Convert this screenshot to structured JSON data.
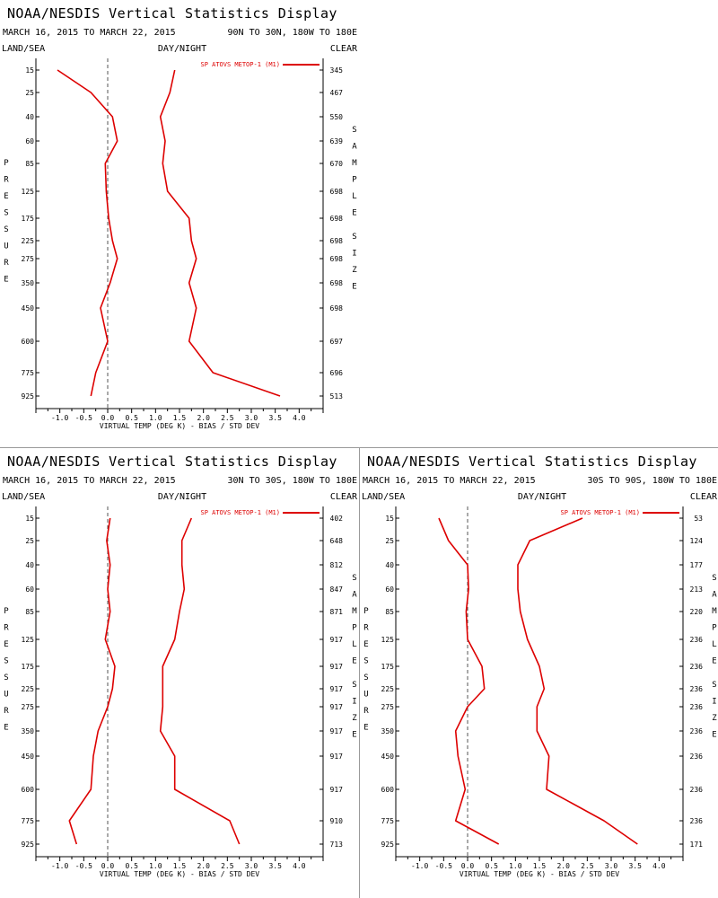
{
  "charts": [
    {
      "title": "NOAA/NESDIS Vertical Statistics Display",
      "date_range": "MARCH 16, 2015 TO MARCH 22, 2015",
      "region": "90N TO 30N, 180W TO 180E",
      "left_label": "LAND/SEA",
      "center_label": "DAY/NIGHT",
      "right_label": "CLEAR",
      "legend": "SP ATOVS METOP-1 (M1)",
      "ylabel": "PRESSURE",
      "y2label": "SAMPLE SIZE",
      "xlabel": "VIRTUAL TEMP (DEG K) - BIAS / STD DEV"
    },
    {
      "title": "NOAA/NESDIS Vertical Statistics Display",
      "date_range": "MARCH 16, 2015 TO MARCH 22, 2015",
      "region": "30N TO 30S, 180W TO 180E",
      "left_label": "LAND/SEA",
      "center_label": "DAY/NIGHT",
      "right_label": "CLEAR",
      "legend": "SP ATOVS METOP-1 (M1)",
      "ylabel": "PRESSURE",
      "y2label": "SAMPLE SIZE",
      "xlabel": "VIRTUAL TEMP (DEG K) - BIAS / STD DEV"
    },
    {
      "title": "NOAA/NESDIS Vertical Statistics Display",
      "date_range": "MARCH 16, 2015 TO MARCH 22, 2015",
      "region": "30S TO 90S, 180W TO 180E",
      "left_label": "LAND/SEA",
      "center_label": "DAY/NIGHT",
      "right_label": "CLEAR",
      "legend": "SP ATOVS METOP-1 (M1)",
      "ylabel": "PRESSURE",
      "y2label": "SAMPLE SIZE",
      "xlabel": "VIRTUAL TEMP (DEG K) - BIAS / STD DEV"
    }
  ],
  "chart_data": [
    {
      "type": "line",
      "pressure_levels": [
        "15",
        "25",
        "40",
        "60",
        "85",
        "125",
        "175",
        "225",
        "275",
        "350",
        "450",
        "600",
        "775",
        "925"
      ],
      "x_ticks": [
        "-1.0",
        "-0.5",
        "0.0",
        "0.5",
        "1.0",
        "1.5",
        "2.0",
        "2.5",
        "3.0",
        "3.5",
        "4.0"
      ],
      "xlim": [
        -1.5,
        4.5
      ],
      "reference_line_x": 0,
      "sample_size": [
        "345",
        "467",
        "550",
        "639",
        "670",
        "698",
        "698",
        "698",
        "698",
        "698",
        "698",
        "697",
        "696",
        "513"
      ],
      "series": [
        {
          "name": "SP ATOVS METOP-1 (M1)",
          "metric": "BIAS",
          "color": "#dd0000",
          "values": [
            -1.05,
            -0.35,
            0.1,
            0.2,
            -0.05,
            -0.03,
            0.02,
            0.1,
            0.2,
            0.05,
            -0.15,
            0.0,
            -0.25,
            -0.35
          ]
        },
        {
          "name": "SP ATOVS METOP-1 (M1)",
          "metric": "STD DEV",
          "color": "#dd0000",
          "values": [
            1.4,
            1.3,
            1.1,
            1.2,
            1.15,
            1.25,
            1.7,
            1.75,
            1.85,
            1.7,
            1.85,
            1.7,
            2.2,
            3.6
          ]
        }
      ]
    },
    {
      "type": "line",
      "pressure_levels": [
        "15",
        "25",
        "40",
        "60",
        "85",
        "125",
        "175",
        "225",
        "275",
        "350",
        "450",
        "600",
        "775",
        "925"
      ],
      "x_ticks": [
        "-1.0",
        "-0.5",
        "0.0",
        "0.5",
        "1.0",
        "1.5",
        "2.0",
        "2.5",
        "3.0",
        "3.5",
        "4.0"
      ],
      "xlim": [
        -1.5,
        4.5
      ],
      "reference_line_x": 0,
      "sample_size": [
        "402",
        "648",
        "812",
        "847",
        "871",
        "917",
        "917",
        "917",
        "917",
        "917",
        "917",
        "917",
        "910",
        "713"
      ],
      "series": [
        {
          "name": "SP ATOVS METOP-1 (M1)",
          "metric": "BIAS",
          "color": "#dd0000",
          "values": [
            0.05,
            -0.02,
            0.05,
            0.0,
            0.05,
            -0.05,
            0.15,
            0.1,
            0.0,
            -0.2,
            -0.3,
            -0.35,
            -0.8,
            -0.65
          ]
        },
        {
          "name": "SP ATOVS METOP-1 (M1)",
          "metric": "STD DEV",
          "color": "#dd0000",
          "values": [
            1.75,
            1.55,
            1.55,
            1.6,
            1.5,
            1.4,
            1.15,
            1.15,
            1.15,
            1.1,
            1.4,
            1.4,
            2.55,
            2.75
          ]
        }
      ]
    },
    {
      "type": "line",
      "pressure_levels": [
        "15",
        "25",
        "40",
        "60",
        "85",
        "125",
        "175",
        "225",
        "275",
        "350",
        "450",
        "600",
        "775",
        "925"
      ],
      "x_ticks": [
        "-1.0",
        "-0.5",
        "0.0",
        "0.5",
        "1.0",
        "1.5",
        "2.0",
        "2.5",
        "3.0",
        "3.5",
        "4.0"
      ],
      "xlim": [
        -1.5,
        4.5
      ],
      "reference_line_x": 0,
      "sample_size": [
        "53",
        "124",
        "177",
        "213",
        "220",
        "236",
        "236",
        "236",
        "236",
        "236",
        "236",
        "236",
        "236",
        "171"
      ],
      "series": [
        {
          "name": "SP ATOVS METOP-1 (M1)",
          "metric": "BIAS",
          "color": "#dd0000",
          "values": [
            -0.6,
            -0.4,
            0.0,
            0.02,
            -0.03,
            0.0,
            0.3,
            0.35,
            0.0,
            -0.25,
            -0.2,
            -0.05,
            -0.25,
            0.65
          ]
        },
        {
          "name": "SP ATOVS METOP-1 (M1)",
          "metric": "STD DEV",
          "color": "#dd0000",
          "values": [
            2.4,
            1.3,
            1.05,
            1.05,
            1.1,
            1.25,
            1.5,
            1.6,
            1.45,
            1.45,
            1.7,
            1.65,
            2.85,
            3.55
          ]
        }
      ]
    }
  ]
}
